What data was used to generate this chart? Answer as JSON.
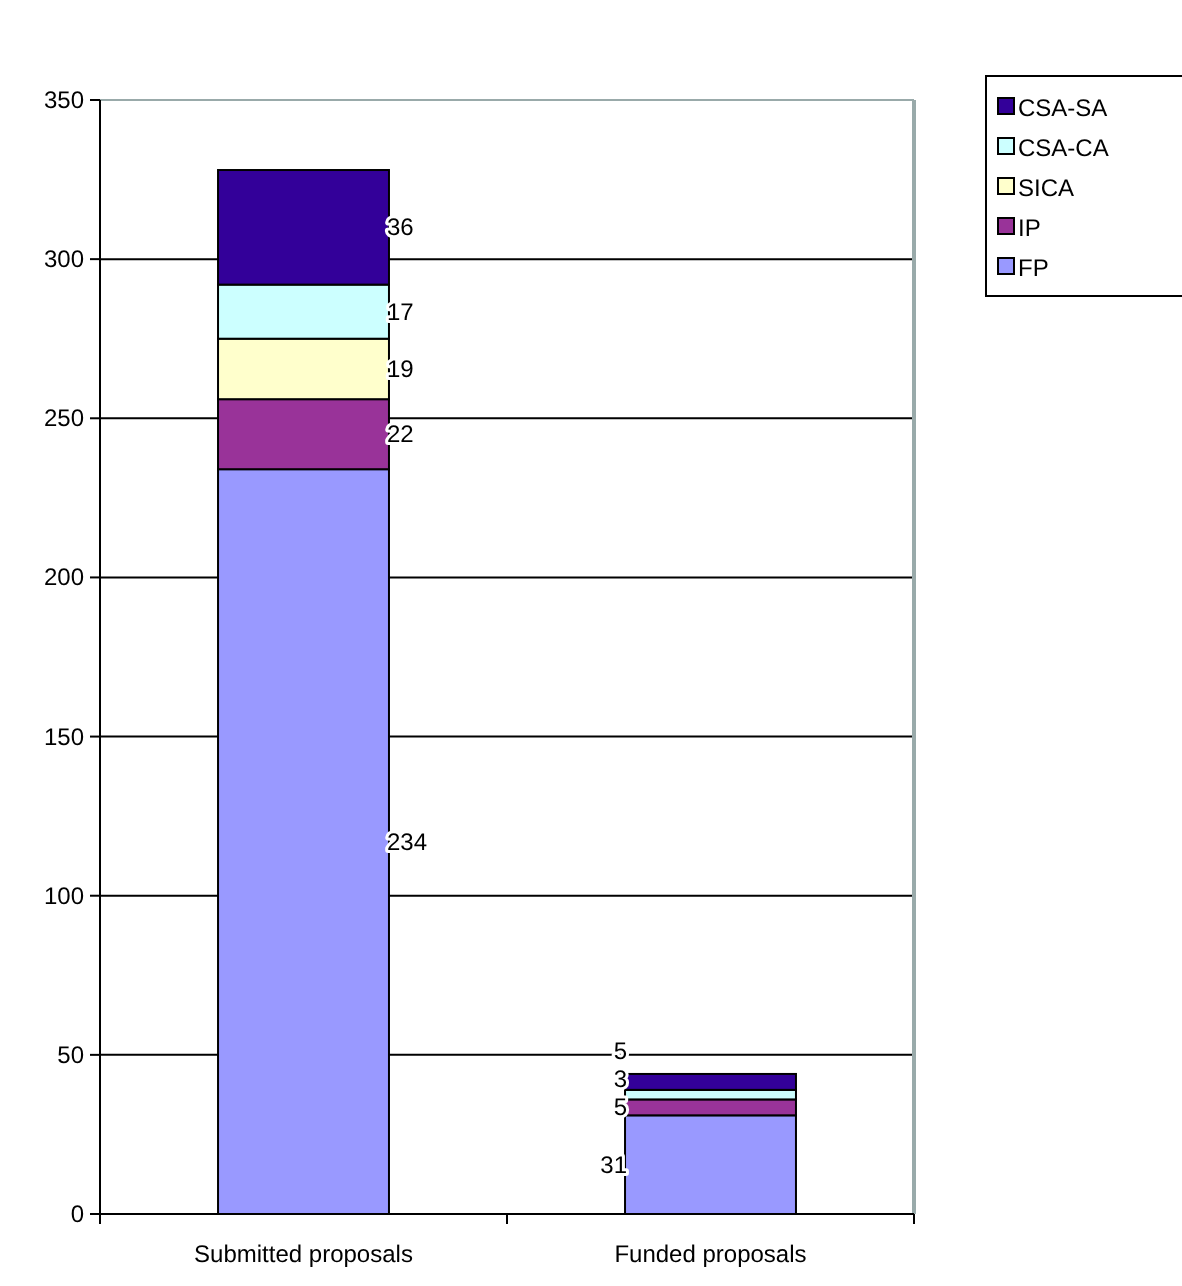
{
  "chart_data": {
    "type": "bar",
    "stacked": true,
    "categories": [
      "Submitted proposals",
      "Funded proposals"
    ],
    "series": [
      {
        "name": "FP",
        "color": "#9999ff",
        "values": [
          234,
          31
        ],
        "value_labels": [
          "234",
          "31"
        ]
      },
      {
        "name": "IP",
        "color": "#993399",
        "values": [
          22,
          5
        ],
        "value_labels": [
          "22",
          "5"
        ]
      },
      {
        "name": "SICA",
        "color": "#ffffcc",
        "values": [
          19,
          0
        ],
        "value_labels": [
          "19",
          null
        ]
      },
      {
        "name": "CSA-CA",
        "color": "#ccffff",
        "values": [
          17,
          3
        ],
        "value_labels": [
          "17",
          "3"
        ]
      },
      {
        "name": "CSA-SA",
        "color": "#330099",
        "values": [
          36,
          5
        ],
        "value_labels": [
          "36",
          "5"
        ]
      }
    ],
    "ylim": [
      0,
      350
    ],
    "yticks": [
      0,
      50,
      100,
      150,
      200,
      250,
      300,
      350
    ],
    "grid": "y",
    "legend": "top right"
  }
}
